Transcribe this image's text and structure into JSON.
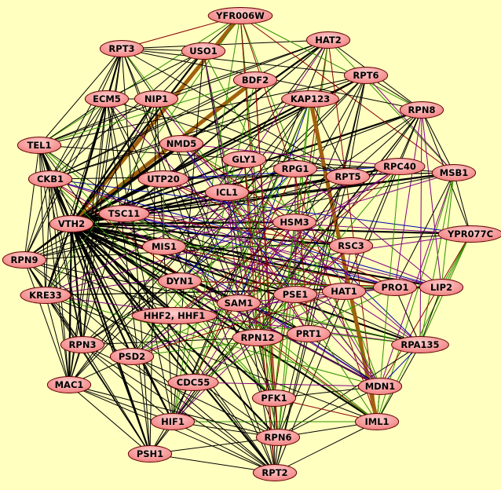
{
  "colors": {
    "background": "#ffffc0",
    "node_fill": "#ff9a9a",
    "node_border": "#600000",
    "edge": {
      "k": "#000000",
      "g": "#2f8f00",
      "r": "#8b0000",
      "p": "#800080",
      "b": "#0000b0",
      "o": "#a06010"
    }
  },
  "nodes": [
    "YFR006W",
    "HAT2",
    "RPT3",
    "USO1",
    "RPT6",
    "BDF2",
    "ECM5",
    "NIP1",
    "KAP123",
    "RPN8",
    "NMD5",
    "TEL1",
    "GLY1",
    "RPG1",
    "RPT5",
    "RPC40",
    "MSB1",
    "CKB1",
    "UTP20",
    "ICL1",
    "TSC11",
    "HSM3",
    "VTH2",
    "YPR077C",
    "RPN9",
    "MIS1",
    "RSC3",
    "DYN1",
    "KRE33",
    "SAM1",
    "PSE1",
    "HAT1",
    "PRO1",
    "LIP2",
    "HHF2, HHF1",
    "RPN12",
    "PRT1",
    "RPA135",
    "RPN3",
    "PSD2",
    "MAC1",
    "CDC55",
    "MDN1",
    "PFK1",
    "HIF1",
    "IML1",
    "RPN6",
    "PSH1",
    "RPT2"
  ],
  "edges": [
    "VTH2|YFR006W|o",
    "VTH2|BDF2|o",
    "VTH2|HAT2|k",
    "VTH2|RPT3|k",
    "VTH2|USO1|k",
    "VTH2|RPT6|k",
    "VTH2|ECM5|k",
    "VTH2|NIP1|k",
    "VTH2|KAP123|k",
    "VTH2|RPN8|k",
    "VTH2|NMD5|k",
    "VTH2|TEL1|k",
    "VTH2|GLY1|k",
    "VTH2|RPG1|k",
    "VTH2|RPT5|k",
    "VTH2|RPC40|k",
    "VTH2|MSB1|k",
    "VTH2|CKB1|k",
    "VTH2|UTP20|k",
    "VTH2|ICL1|k",
    "VTH2|TSC11|k",
    "VTH2|HSM3|k",
    "VTH2|YPR077C|k",
    "VTH2|RPN9|k",
    "VTH2|MIS1|k",
    "VTH2|RSC3|k",
    "VTH2|DYN1|k",
    "VTH2|KRE33|k",
    "VTH2|SAM1|k",
    "VTH2|PSE1|k",
    "VTH2|HAT1|k",
    "VTH2|PRO1|k",
    "VTH2|LIP2|k",
    "VTH2|HHF2, HHF1|k",
    "VTH2|RPN12|k",
    "VTH2|PRT1|k",
    "VTH2|RPA135|k",
    "VTH2|RPN3|k",
    "VTH2|PSD2|k",
    "VTH2|MAC1|k",
    "VTH2|CDC55|k",
    "VTH2|MDN1|k",
    "VTH2|PFK1|k",
    "VTH2|HIF1|k",
    "VTH2|IML1|k",
    "VTH2|RPN6|k",
    "VTH2|PSH1|k",
    "VTH2|RPT2|k",
    "HAT2|RPT3|k",
    "HAT2|NIP1|k",
    "HAT2|TEL1|k",
    "HAT2|CKB1|k",
    "HAT2|TSC11|k",
    "HAT2|RPN9|k",
    "HAT2|MSB1|g",
    "HAT2|RPN8|k",
    "HAT2|PFK1|r",
    "HAT2|RPN6|g",
    "HAT2|HIF1|k",
    "HAT2|MAC1|k",
    "HAT2|UTP20|k",
    "HAT2|ICL1|p",
    "YFR006W|RPT3|r",
    "YFR006W|TEL1|g",
    "YFR006W|CKB1|k",
    "YFR006W|KRE33|g",
    "YFR006W|PFK1|r",
    "YFR006W|RPN6|g",
    "YFR006W|MDN1|g",
    "YFR006W|IML1|r",
    "YFR006W|MSB1|r",
    "YFR006W|RPN8|g",
    "YFR006W|HIF1|g",
    "YFR006W|RPT2|r",
    "RPT3|USO1|k",
    "RPT3|ECM5|k",
    "RPT3|NIP1|k",
    "RPT3|TEL1|k",
    "RPT3|CKB1|k",
    "RPT3|RPN9|k",
    "RPT3|MAC1|k",
    "RPT3|RPN3|k",
    "RPT3|PSH1|k",
    "RPT3|RPT2|k",
    "RPT3|RPN6|k",
    "RPT3|RPT6|k",
    "RPT3|RPN8|k",
    "RPT3|RPT5|k",
    "RPT3|MDN1|g",
    "RPT6|RPN8|k",
    "RPT6|RPT5|k",
    "RPT6|RPN9|k",
    "RPT6|RPN3|k",
    "RPT6|RPN6|k",
    "RPT6|RPT2|k",
    "RPT6|RPN12|k",
    "RPT6|PSH1|k",
    "RPT6|MAC1|k",
    "RPT6|CKB1|k",
    "RPT6|TEL1|k",
    "RPT6|MSB1|p",
    "RPN8|RPT5|k",
    "RPN8|RPN9|k",
    "RPN8|RPN3|k",
    "RPN8|RPN6|k",
    "RPN8|RPT2|k",
    "RPN8|RPN12|k",
    "RPN8|MSB1|k",
    "RPN8|YPR077C|k",
    "RPN8|RPA135|p",
    "RPN8|LIP2|p",
    "RPN8|PRO1|p",
    "RPN8|HIF1|k",
    "RPN8|PSH1|k",
    "MSB1|YPR077C|k",
    "MSB1|LIP2|g",
    "MSB1|RPA135|g",
    "MSB1|PRO1|k",
    "MSB1|TEL1|k",
    "MSB1|CKB1|k",
    "MSB1|KRE33|p",
    "MSB1|RPN9|k",
    "MSB1|MDN1|p",
    "MSB1|IML1|g",
    "MSB1|UTP20|k",
    "MSB1|TSC11|k",
    "YPR077C|LIP2|g",
    "YPR077C|RPA135|g",
    "YPR077C|IML1|g",
    "YPR077C|MDN1|r",
    "YPR077C|CKB1|b",
    "YPR077C|KRE33|p",
    "YPR077C|RPN9|k",
    "YPR077C|TSC11|p",
    "RPA135|LIP2|k",
    "RPA135|PRO1|k",
    "RPA135|MDN1|b",
    "RPA135|IML1|k",
    "RPA135|RPN9|k",
    "RPA135|KRE33|p",
    "RPA135|TSC11|k",
    "RPA135|UTP20|p",
    "RPA135|RPN6|k",
    "IML1|MDN1|k",
    "IML1|RPN6|k",
    "IML1|RPT2|k",
    "IML1|PFK1|r",
    "IML1|HIF1|g",
    "IML1|KRE33|k",
    "IML1|CKB1|r",
    "IML1|TEL1|g",
    "IML1|HAT2|r",
    "IML1|KAP123|o",
    "MDN1|PFK1|k",
    "MDN1|RPN6|k",
    "MDN1|CKB1|p",
    "MDN1|TEL1|k",
    "MDN1|KRE33|g",
    "MDN1|NIP1|p",
    "MDN1|ECM5|p",
    "RPT2|RPN6|k",
    "RPT2|PSH1|k",
    "RPT2|HIF1|k",
    "RPT2|MAC1|k",
    "RPT2|RPN3|k",
    "RPT2|RPN9|k",
    "RPT2|TEL1|k",
    "RPT2|CKB1|k",
    "RPT2|KRE33|k",
    "RPT2|RPT5|k",
    "RPT2|PFK1|k",
    "RPT2|USO1|k",
    "RPT2|ECM5|k",
    "PSH1|HIF1|k",
    "PSH1|MAC1|k",
    "PSH1|RPN3|k",
    "PSH1|RPN9|k",
    "PSH1|TEL1|k",
    "PSH1|CKB1|k",
    "PSH1|KRE33|k",
    "PSH1|RPN6|k",
    "PSH1|RPT5|k",
    "PSH1|ECM5|k",
    "PSH1|NIP1|k",
    "RPN6|RPN3|k",
    "RPN6|RPN9|k",
    "RPN6|MAC1|k",
    "RPN6|HIF1|k",
    "RPN6|RPN12|k",
    "RPN6|PFK1|r",
    "RPN6|KAP123|g",
    "RPN6|BDF2|r",
    "RPN6|USO1|g",
    "RPN9|RPN3|k",
    "RPN9|MAC1|k",
    "RPN9|KRE33|k",
    "RPN9|TEL1|k",
    "RPN9|CKB1|k",
    "RPN9|ECM5|k",
    "RPN9|RPN12|k",
    "RPN9|RPT5|k",
    "KRE33|TEL1|k",
    "KRE33|CKB1|k",
    "KRE33|MAC1|k",
    "KRE33|RPN3|k",
    "KRE33|UTP20|k",
    "KRE33|NIP1|k",
    "KRE33|ECM5|k",
    "KRE33|RPG1|p",
    "KRE33|LIP2|k",
    "KRE33|PRO1|k",
    "TEL1|CKB1|k",
    "TEL1|ECM5|k",
    "TEL1|NIP1|k",
    "TEL1|MAC1|k",
    "TEL1|RPN3|k",
    "TEL1|HIF1|k",
    "TEL1|PFK1|g",
    "CKB1|ECM5|k",
    "CKB1|MAC1|k",
    "CKB1|RPN3|k",
    "CKB1|HIF1|k",
    "CKB1|PFK1|g",
    "CKB1|LIP2|b",
    "CKB1|PRO1|p",
    "MAC1|RPN3|k",
    "MAC1|HIF1|k",
    "MAC1|ECM5|k",
    "MAC1|NIP1|k",
    "MAC1|PSD2|k",
    "RPN3|RPN12|k",
    "RPN3|RPT5|k",
    "RPN3|ECM5|k",
    "RPN3|HIF1|k",
    "ECM5|NIP1|k",
    "ECM5|USO1|k",
    "ECM5|RPT5|k",
    "ECM5|HIF1|k",
    "ECM5|PFK1|k",
    "NIP1|USO1|k",
    "NIP1|RPT5|k",
    "NIP1|PFK1|k",
    "NIP1|HIF1|k",
    "NIP1|RPN12|k",
    "RPT5|RPN12|k",
    "RPT5|HIF1|k",
    "RPT5|KAP123|k",
    "RPT5|PSD2|k",
    "USO1|PFK1|g",
    "USO1|HIF1|k",
    "USO1|RPN12|p",
    "USO1|MDN1|g",
    "KAP123|PFK1|g",
    "KAP123|HIF1|k",
    "KAP123|PSD2|k",
    "KAP123|MAC1|k",
    "KAP123|CKB1|k",
    "BDF2|PFK1|r",
    "BDF2|HIF1|g",
    "BDF2|CKB1|k",
    "BDF2|TEL1|g",
    "TSC11|LIP2|p",
    "TSC11|PRO1|b",
    "TSC11|HAT1|k",
    "TSC11|RSC3|r",
    "TSC11|PSE1|g",
    "UTP20|LIP2|p",
    "UTP20|PRO1|r",
    "UTP20|RPC40|b",
    "UTP20|MIS1|g",
    "ICL1|HSM3|g",
    "ICL1|PRT1|r",
    "ICL1|SAM1|p",
    "ICL1|IML1|g",
    "GLY1|RPN12|r",
    "GLY1|PFK1|g",
    "GLY1|MDN1|p",
    "GLY1|RPT2|r",
    "HSM3|RSC3|p",
    "HSM3|SAM1|r",
    "HSM3|PFK1|g",
    "HSM3|HIF1|p",
    "HSM3|RPA135|b",
    "MIS1|RSC3|g",
    "MIS1|PRO1|r",
    "MIS1|HAT1|p",
    "MIS1|MDN1|b",
    "RSC3|HAT1|p",
    "RSC3|PSD2|g",
    "RSC3|CDC55|r",
    "RSC3|HIF1|p",
    "DYN1|PRO1|g",
    "DYN1|LIP2|r",
    "DYN1|MDN1|p",
    "DYN1|IML1|g",
    "DYN1|RPG1|b",
    "SAM1|PRO1|p",
    "SAM1|RPA135|g",
    "SAM1|RPC40|r",
    "SAM1|KAP123|b",
    "PSE1|HAT1|r",
    "PSE1|RPG1|p",
    "PSE1|CDC55|g",
    "PSE1|PSD2|p",
    "PSE1|NMD5|b",
    "HAT1|LIP2|g",
    "HAT1|PSD2|r",
    "HAT1|RPN12|p",
    "PRO1|LIP2|k",
    "PRO1|HHF2, HHF1|p",
    "PRO1|CDC55|g",
    "HHF2, HHF1|RPA135|g",
    "HHF2, HHF1|RPC40|p",
    "HHF2, HHF1|HSM3|r",
    "RPN12|PRT1|k",
    "RPN12|CDC55|p",
    "RPN12|RPC40|g",
    "PRT1|PSD2|g",
    "PRT1|NMD5|p",
    "PRT1|RPG1|r",
    "PSD2|CDC55|k",
    "PSD2|RPC40|p",
    "PSD2|RPG1|g",
    "CDC55|MDN1|p",
    "CDC55|RPG1|r",
    "CDC55|KAP123|g",
    "NMD5|RPC40|p",
    "NMD5|RSC3|g",
    "NMD5|HSM3|r",
    "NMD5|RPA135|p",
    "RPG1|RPC40|k",
    "RPG1|LIP2|p",
    "RPC40|IML1|g",
    "RPC40|MIS1|p"
  ]
}
